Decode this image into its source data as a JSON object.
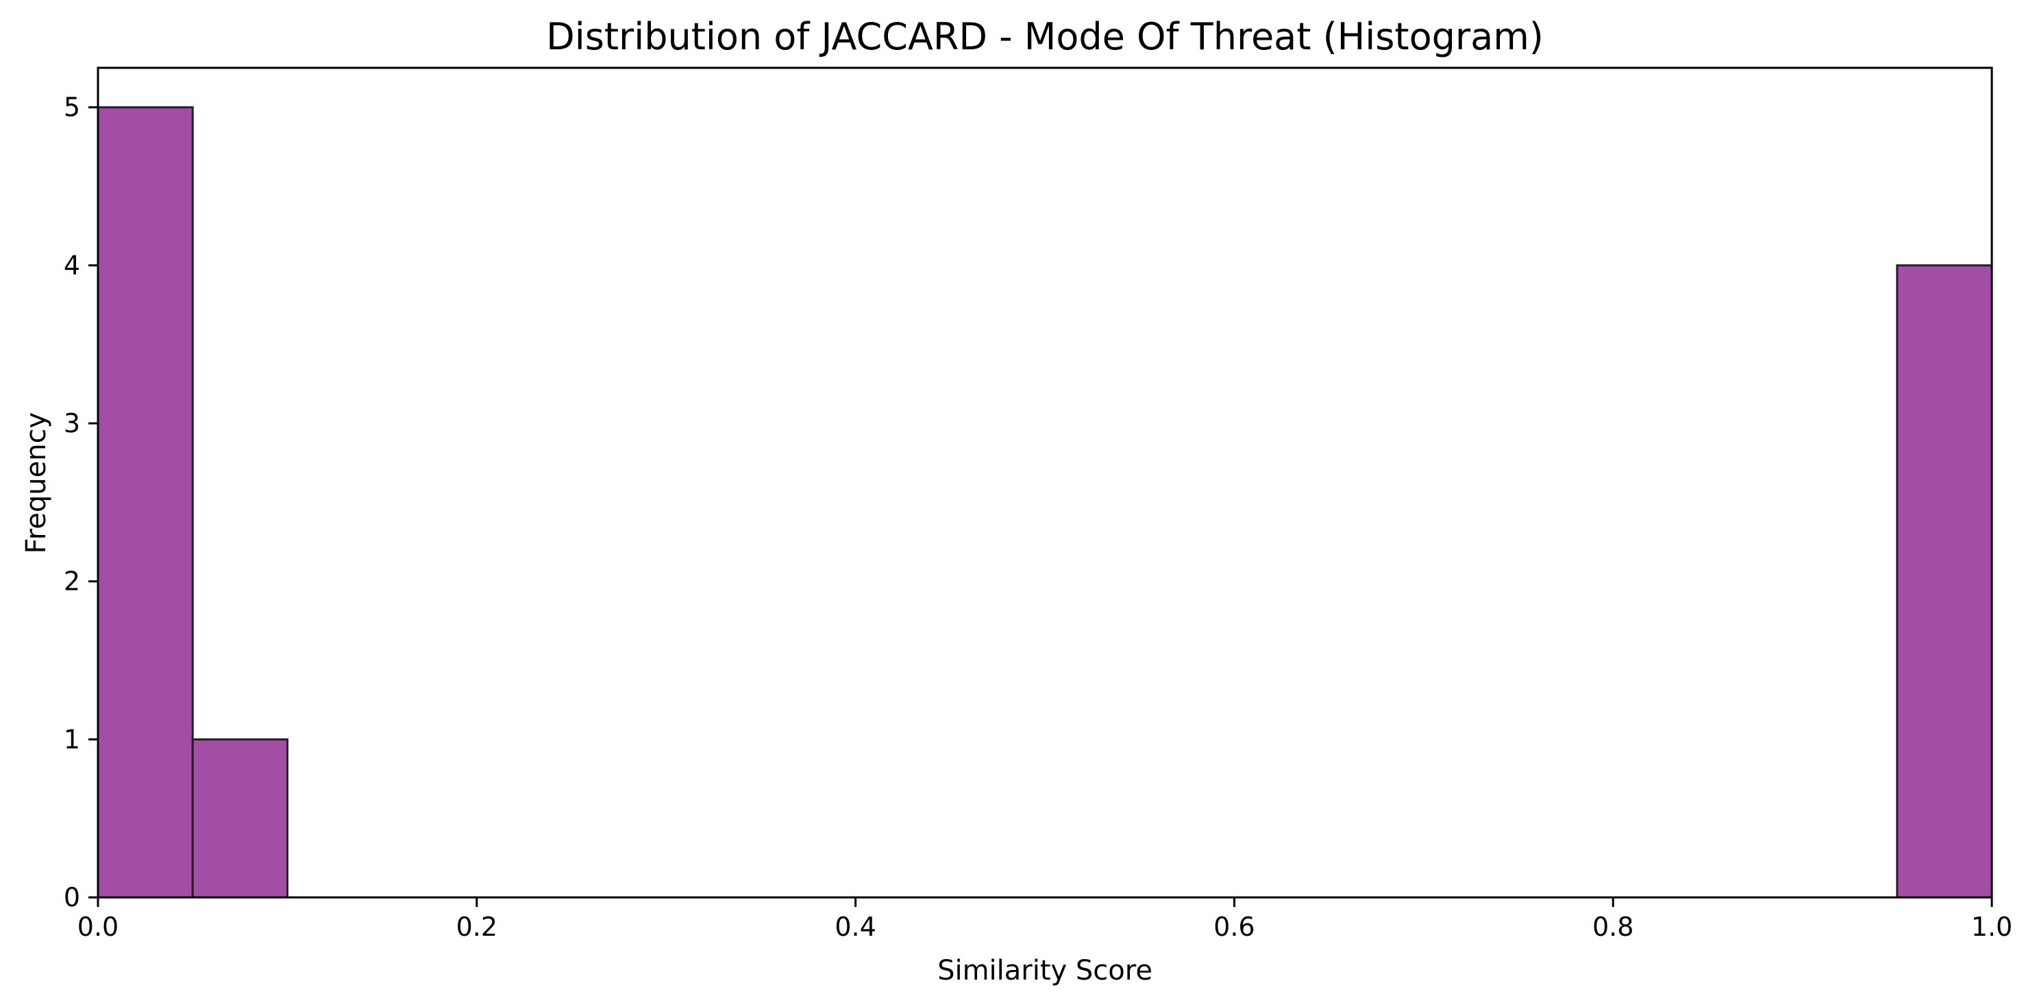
{
  "chart_data": {
    "type": "bar",
    "subtype": "histogram",
    "title": "Distribution of JACCARD - Mode Of Threat (Histogram)",
    "xlabel": "Similarity Score",
    "ylabel": "Frequency",
    "xlim": [
      0.0,
      1.0
    ],
    "ylim": [
      0,
      5.25
    ],
    "xticks": [
      0.0,
      0.2,
      0.4,
      0.6,
      0.8,
      1.0
    ],
    "xtick_labels": [
      "0.0",
      "0.2",
      "0.4",
      "0.6",
      "0.8",
      "1.0"
    ],
    "yticks": [
      0,
      1,
      2,
      3,
      4,
      5
    ],
    "ytick_labels": [
      "0",
      "1",
      "2",
      "3",
      "4",
      "5"
    ],
    "bins": [
      {
        "start": 0.0,
        "end": 0.05,
        "count": 5
      },
      {
        "start": 0.05,
        "end": 0.1,
        "count": 1
      },
      {
        "start": 0.95,
        "end": 1.0,
        "count": 4
      }
    ],
    "bar_color": "#a44da4",
    "edge_color": "#2a1a2a",
    "grid": false
  }
}
